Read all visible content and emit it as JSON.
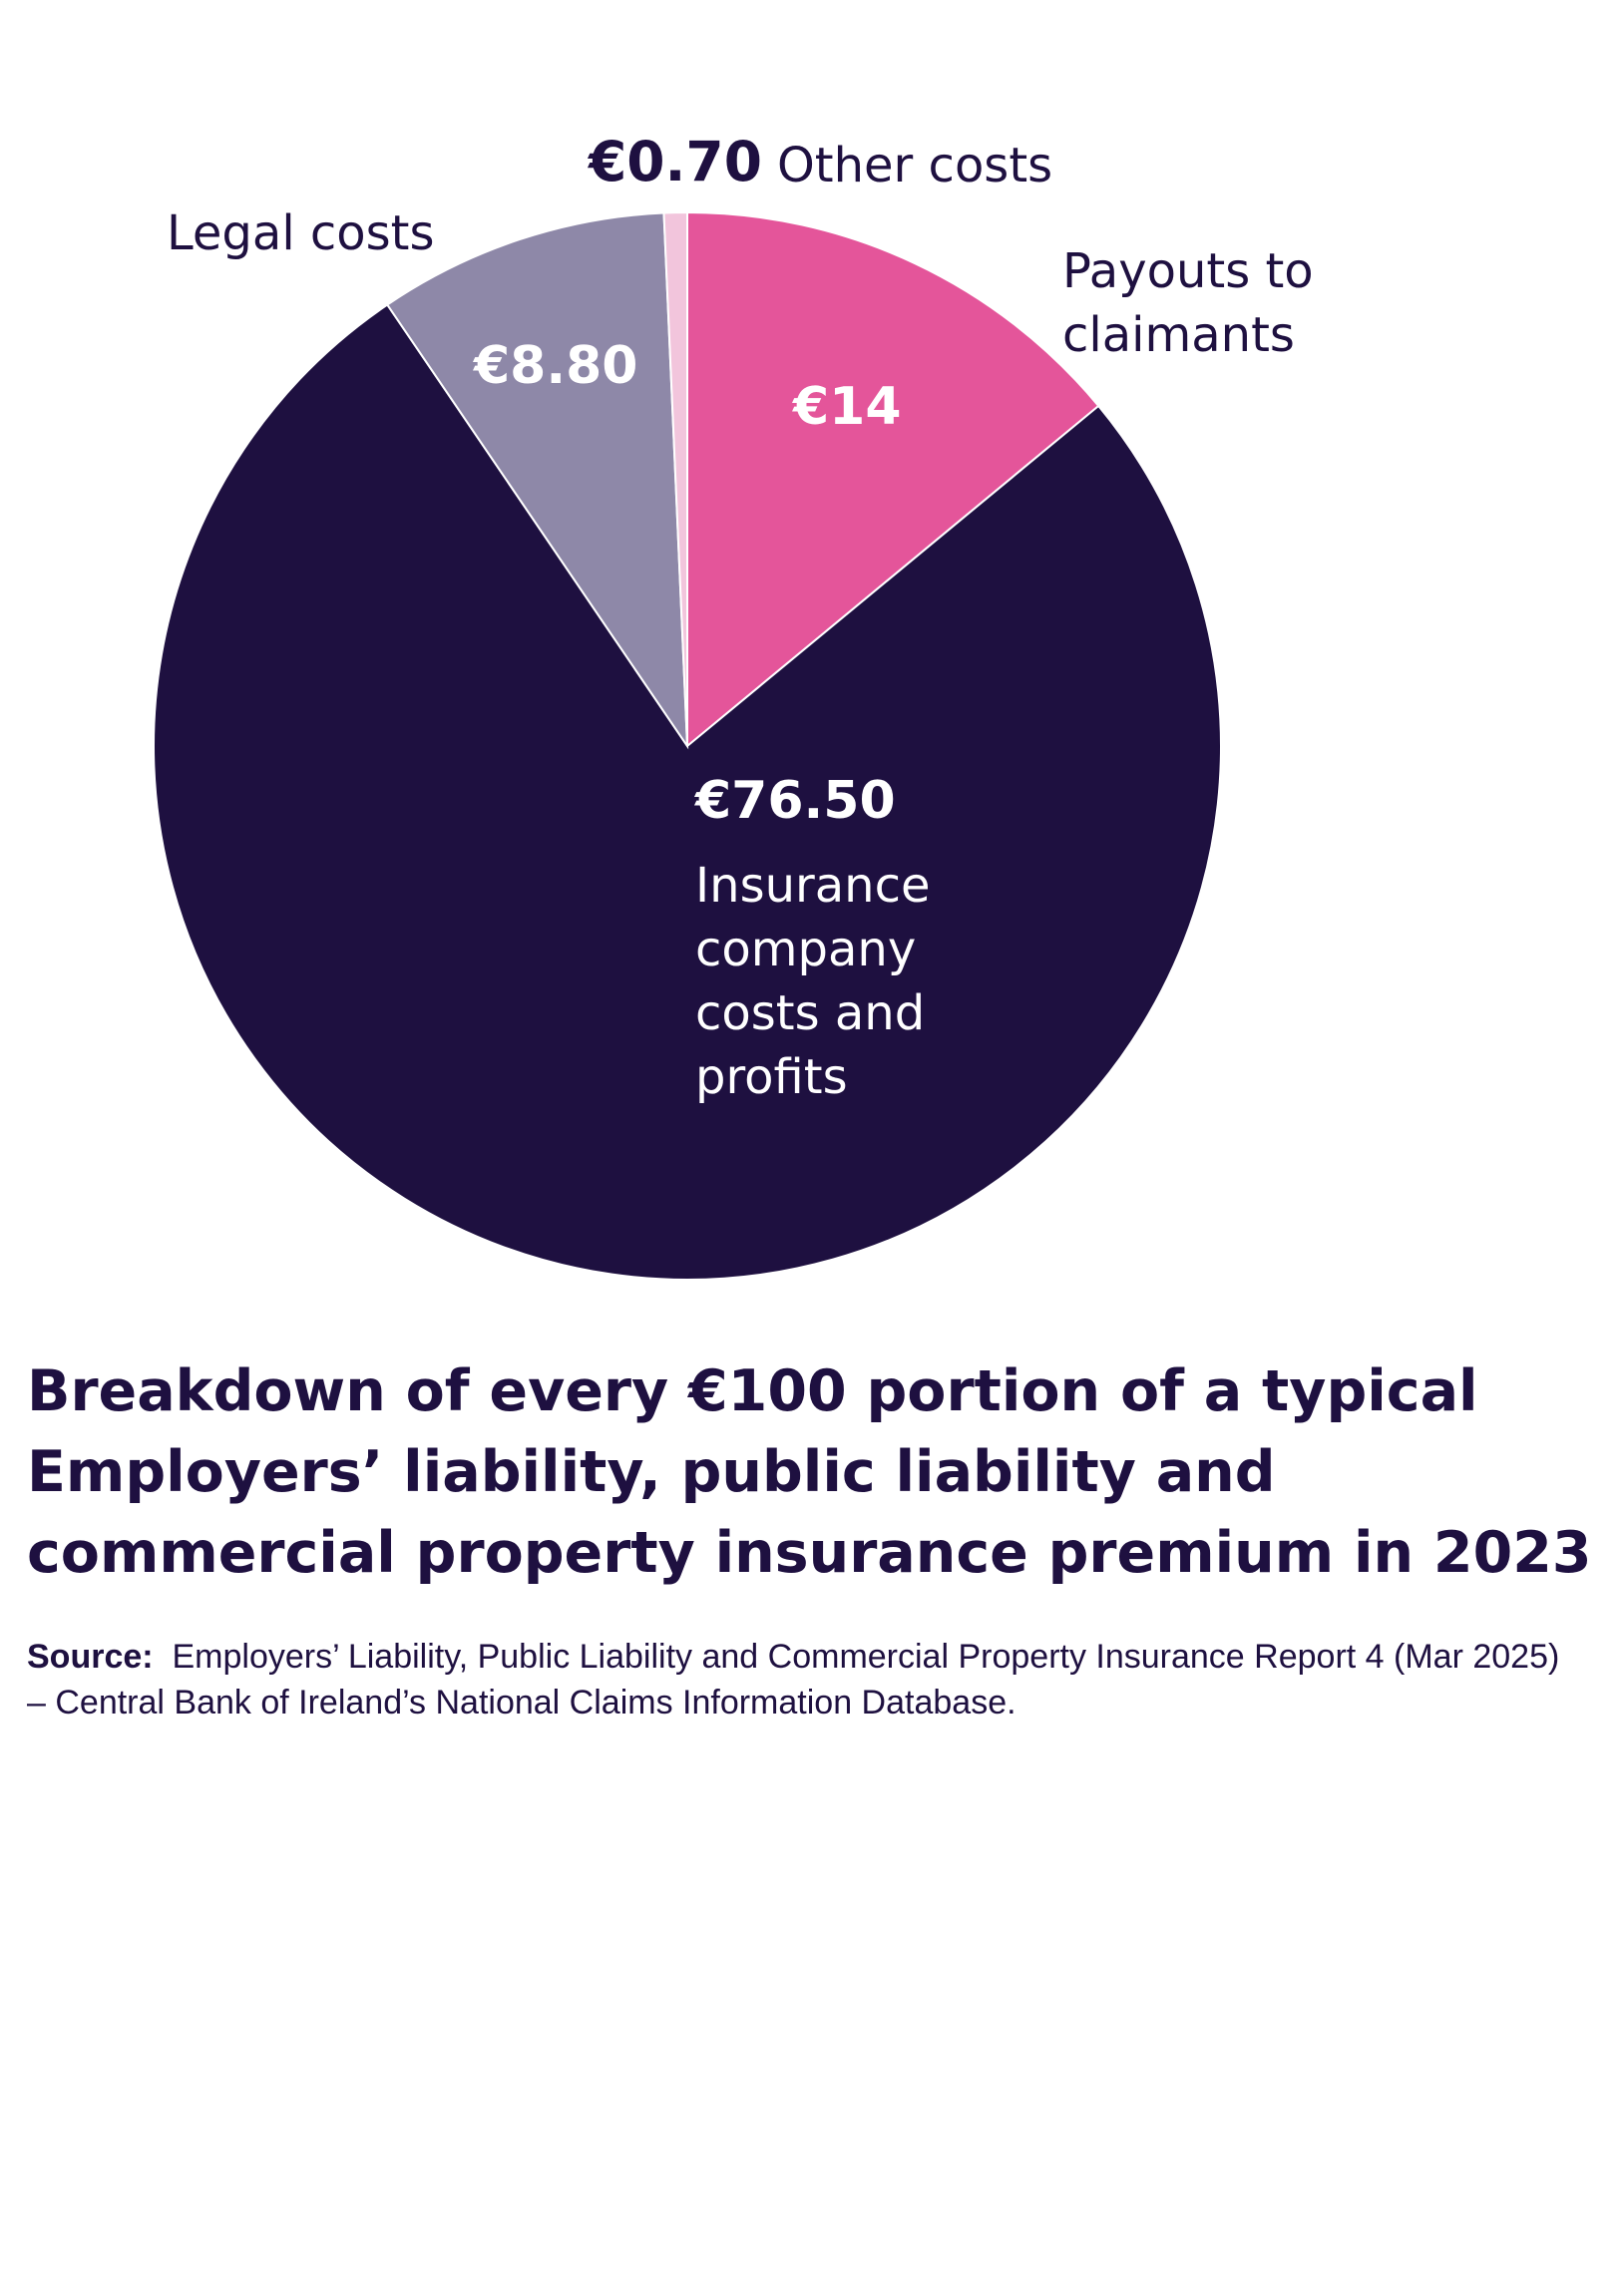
{
  "chart_data": {
    "type": "pie",
    "title": "Breakdown of every €100 portion of a typical Employers’ liability, public liability and commercial property insurance premium in 2023",
    "categories": [
      "Payouts to claimants",
      "Insurance company costs and profits",
      "Legal costs",
      "Other costs"
    ],
    "values": [
      14,
      76.5,
      8.8,
      0.7
    ],
    "value_labels": [
      "€14",
      "€76.50",
      "€8.80",
      "€0.70"
    ],
    "colors": [
      "#e4559a",
      "#1e1040",
      "#8e88a8",
      "#f2c5dc"
    ],
    "source_label": "Source:",
    "source_text": "Employers’ Liability, Public Liability and Commercial Property Insurance Report 4 (Mar 2025) – Central Bank of Ireland’s National Claims Information Database."
  }
}
